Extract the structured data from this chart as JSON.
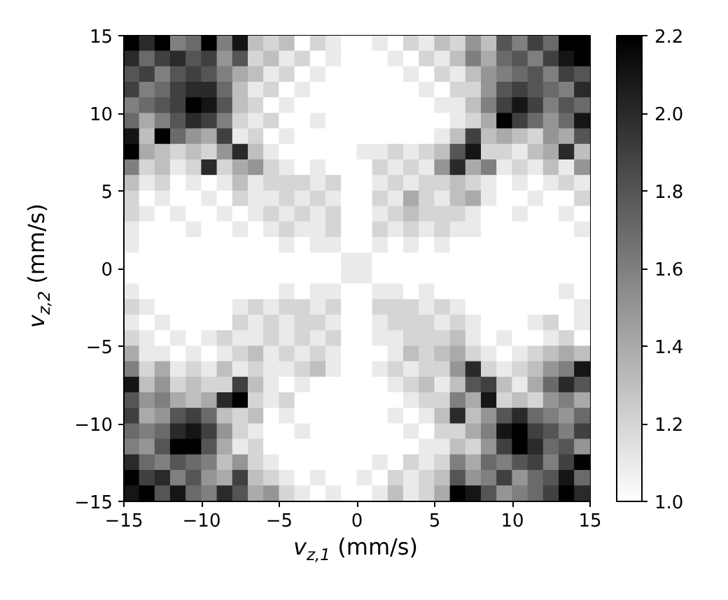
{
  "chart_data": {
    "type": "heatmap",
    "xlabel": "v$_{z,1}$ (mm/s)",
    "ylabel": "v$_{z,2}$ (mm/s)",
    "xlim": [
      -15,
      15
    ],
    "ylim": [
      -15,
      15
    ],
    "xticks": [
      -15,
      -10,
      -5,
      0,
      5,
      10,
      15
    ],
    "yticks": [
      -15,
      -10,
      -5,
      0,
      5,
      10,
      15
    ],
    "clim": [
      1.0,
      2.2
    ],
    "cticks": [
      {
        "value": 1.0,
        "label": "1.0"
      },
      1.2,
      1.4,
      1.6,
      1.8,
      {
        "value": 2.0,
        "label": "2.0"
      },
      2.2
    ],
    "cells": [
      [
        2.2,
        2.0,
        2.2,
        1.6,
        1.7,
        2.2,
        1.6,
        2.1,
        1.3,
        1.2,
        1.3,
        1.0,
        1.2,
        1.1,
        1.0,
        1.0,
        1.1,
        1.0,
        1.2,
        1.1,
        1.3,
        1.2,
        1.5,
        1.3,
        1.8,
        1.6,
        1.9,
        1.7,
        2.2,
        2.2
      ],
      [
        2.0,
        1.7,
        1.9,
        2.0,
        1.8,
        1.9,
        1.5,
        1.8,
        1.2,
        1.3,
        1.1,
        1.2,
        1.0,
        1.1,
        1.0,
        1.0,
        1.0,
        1.1,
        1.0,
        1.2,
        1.1,
        1.3,
        1.6,
        1.4,
        1.7,
        1.8,
        1.6,
        1.9,
        2.1,
        2.2
      ],
      [
        1.8,
        1.9,
        1.6,
        1.8,
        1.9,
        1.8,
        1.6,
        1.4,
        1.3,
        1.1,
        1.2,
        1.0,
        1.1,
        1.0,
        1.0,
        1.0,
        1.0,
        1.0,
        1.1,
        1.0,
        1.2,
        1.1,
        1.3,
        1.5,
        1.6,
        1.7,
        1.8,
        1.6,
        1.9,
        1.8
      ],
      [
        1.9,
        1.6,
        1.7,
        1.9,
        2.0,
        2.0,
        1.7,
        1.3,
        1.1,
        1.2,
        1.0,
        1.1,
        1.0,
        1.0,
        1.0,
        1.0,
        1.0,
        1.0,
        1.0,
        1.1,
        1.0,
        1.2,
        1.2,
        1.5,
        1.8,
        1.9,
        1.8,
        1.7,
        1.6,
        2.0
      ],
      [
        1.6,
        1.7,
        1.8,
        1.9,
        2.2,
        2.1,
        1.8,
        1.3,
        1.2,
        1.0,
        1.1,
        1.0,
        1.0,
        1.0,
        1.0,
        1.0,
        1.0,
        1.0,
        1.0,
        1.0,
        1.1,
        1.1,
        1.3,
        1.6,
        1.9,
        2.1,
        1.9,
        1.6,
        1.8,
        1.7
      ],
      [
        1.7,
        1.4,
        1.6,
        1.8,
        2.0,
        1.9,
        1.6,
        1.2,
        1.1,
        1.2,
        1.0,
        1.0,
        1.1,
        1.0,
        1.0,
        1.0,
        1.0,
        1.0,
        1.0,
        1.0,
        1.0,
        1.1,
        1.2,
        1.4,
        2.2,
        1.9,
        1.7,
        1.5,
        1.7,
        2.1
      ],
      [
        2.1,
        1.3,
        2.2,
        1.7,
        1.5,
        1.4,
        1.9,
        1.1,
        1.2,
        1.0,
        1.1,
        1.0,
        1.0,
        1.0,
        1.0,
        1.0,
        1.0,
        1.0,
        1.0,
        1.0,
        1.1,
        1.3,
        1.9,
        1.3,
        1.4,
        1.3,
        1.2,
        1.5,
        1.4,
        1.8
      ],
      [
        2.2,
        1.4,
        1.3,
        1.2,
        1.3,
        1.2,
        1.5,
        2.0,
        1.3,
        1.1,
        1.0,
        1.0,
        1.0,
        1.0,
        1.0,
        1.1,
        1.1,
        1.2,
        1.1,
        1.2,
        1.3,
        1.8,
        2.1,
        1.2,
        1.2,
        1.1,
        1.3,
        1.4,
        2.0,
        1.3
      ],
      [
        1.6,
        1.2,
        1.3,
        1.1,
        1.2,
        2.0,
        1.2,
        1.4,
        1.5,
        1.2,
        1.1,
        1.0,
        1.1,
        1.0,
        1.0,
        1.0,
        1.2,
        1.1,
        1.2,
        1.1,
        1.5,
        2.0,
        1.4,
        1.6,
        1.1,
        1.2,
        1.1,
        1.3,
        1.1,
        1.5
      ],
      [
        1.3,
        1.1,
        1.2,
        1.0,
        1.1,
        1.0,
        1.1,
        1.3,
        1.1,
        1.2,
        1.2,
        1.2,
        1.1,
        1.2,
        1.0,
        1.0,
        1.1,
        1.2,
        1.1,
        1.2,
        1.2,
        1.3,
        1.2,
        1.1,
        1.0,
        1.1,
        1.0,
        1.1,
        1.2,
        1.1
      ],
      [
        1.2,
        1.0,
        1.1,
        1.0,
        1.0,
        1.1,
        1.0,
        1.2,
        1.1,
        1.1,
        1.2,
        1.1,
        1.2,
        1.1,
        1.0,
        1.0,
        1.2,
        1.1,
        1.4,
        1.2,
        1.1,
        1.3,
        1.4,
        1.1,
        1.0,
        1.0,
        1.1,
        1.0,
        1.0,
        1.2
      ],
      [
        1.2,
        1.1,
        1.0,
        1.1,
        1.0,
        1.0,
        1.1,
        1.0,
        1.1,
        1.2,
        1.1,
        1.2,
        1.1,
        1.2,
        1.0,
        1.0,
        1.1,
        1.2,
        1.3,
        1.2,
        1.2,
        1.2,
        1.1,
        1.0,
        1.0,
        1.1,
        1.0,
        1.0,
        1.1,
        1.0
      ],
      [
        1.1,
        1.0,
        1.0,
        1.0,
        1.1,
        1.0,
        1.0,
        1.1,
        1.0,
        1.1,
        1.2,
        1.1,
        1.1,
        1.2,
        1.0,
        1.0,
        1.2,
        1.1,
        1.2,
        1.1,
        1.2,
        1.1,
        1.1,
        1.0,
        1.0,
        1.0,
        1.0,
        1.0,
        1.0,
        1.1
      ],
      [
        1.1,
        1.0,
        1.0,
        1.0,
        1.0,
        1.0,
        1.0,
        1.0,
        1.0,
        1.0,
        1.1,
        1.0,
        1.1,
        1.1,
        1.0,
        1.0,
        1.1,
        1.0,
        1.1,
        1.0,
        1.1,
        1.0,
        1.0,
        1.0,
        1.0,
        1.0,
        1.0,
        1.0,
        1.0,
        1.0
      ],
      [
        1.0,
        1.0,
        1.0,
        1.0,
        1.0,
        1.0,
        1.0,
        1.0,
        1.0,
        1.0,
        1.0,
        1.0,
        1.0,
        1.0,
        1.1,
        1.1,
        1.0,
        1.0,
        1.0,
        1.0,
        1.0,
        1.0,
        1.0,
        1.0,
        1.0,
        1.0,
        1.0,
        1.0,
        1.0,
        1.0
      ],
      [
        1.0,
        1.0,
        1.0,
        1.0,
        1.0,
        1.0,
        1.0,
        1.0,
        1.0,
        1.0,
        1.0,
        1.0,
        1.0,
        1.0,
        1.1,
        1.1,
        1.0,
        1.0,
        1.0,
        1.0,
        1.0,
        1.0,
        1.0,
        1.0,
        1.0,
        1.0,
        1.0,
        1.0,
        1.0,
        1.0
      ],
      [
        1.1,
        1.0,
        1.0,
        1.0,
        1.0,
        1.0,
        1.0,
        1.0,
        1.0,
        1.0,
        1.1,
        1.0,
        1.1,
        1.1,
        1.0,
        1.0,
        1.1,
        1.1,
        1.0,
        1.1,
        1.0,
        1.0,
        1.0,
        1.0,
        1.0,
        1.0,
        1.0,
        1.0,
        1.1,
        1.0
      ],
      [
        1.2,
        1.1,
        1.0,
        1.0,
        1.0,
        1.0,
        1.0,
        1.1,
        1.2,
        1.1,
        1.2,
        1.2,
        1.1,
        1.2,
        1.0,
        1.0,
        1.2,
        1.2,
        1.2,
        1.1,
        1.2,
        1.1,
        1.0,
        1.0,
        1.0,
        1.0,
        1.0,
        1.0,
        1.0,
        1.1
      ],
      [
        1.1,
        1.0,
        1.1,
        1.0,
        1.0,
        1.0,
        1.0,
        1.2,
        1.1,
        1.2,
        1.1,
        1.2,
        1.2,
        1.1,
        1.0,
        1.0,
        1.1,
        1.2,
        1.2,
        1.2,
        1.1,
        1.2,
        1.1,
        1.0,
        1.0,
        1.0,
        1.1,
        1.2,
        1.0,
        1.1
      ],
      [
        1.2,
        1.1,
        1.0,
        1.1,
        1.0,
        1.1,
        1.2,
        1.1,
        1.1,
        1.2,
        1.1,
        1.2,
        1.1,
        1.2,
        1.0,
        1.0,
        1.1,
        1.1,
        1.2,
        1.2,
        1.2,
        1.3,
        1.1,
        1.0,
        1.1,
        1.0,
        1.0,
        1.1,
        1.2,
        1.0
      ],
      [
        1.4,
        1.1,
        1.1,
        1.0,
        1.1,
        1.0,
        1.1,
        1.2,
        1.3,
        1.1,
        1.2,
        1.1,
        1.2,
        1.1,
        1.0,
        1.0,
        1.0,
        1.1,
        1.3,
        1.2,
        1.3,
        1.4,
        1.2,
        1.1,
        1.0,
        1.1,
        1.2,
        1.3,
        1.4,
        1.3
      ],
      [
        1.6,
        1.2,
        1.4,
        1.1,
        1.2,
        1.1,
        1.3,
        1.1,
        1.2,
        1.1,
        1.1,
        1.2,
        1.3,
        1.1,
        1.0,
        1.0,
        1.1,
        1.2,
        1.1,
        1.2,
        1.2,
        1.5,
        2.0,
        1.2,
        1.1,
        1.2,
        1.3,
        1.5,
        1.6,
        2.1
      ],
      [
        2.1,
        1.3,
        1.5,
        1.2,
        1.3,
        1.2,
        1.2,
        1.9,
        1.3,
        1.1,
        1.0,
        1.1,
        1.0,
        1.0,
        1.0,
        1.0,
        1.0,
        1.1,
        1.2,
        1.3,
        1.1,
        1.3,
        1.8,
        1.9,
        1.3,
        1.1,
        1.4,
        1.7,
        2.0,
        1.8
      ],
      [
        1.8,
        1.5,
        1.6,
        1.4,
        1.3,
        1.4,
        2.0,
        2.2,
        1.2,
        1.1,
        1.2,
        1.0,
        1.0,
        1.0,
        1.0,
        1.0,
        1.0,
        1.0,
        1.1,
        1.2,
        1.2,
        1.6,
        1.4,
        2.1,
        1.2,
        1.3,
        1.2,
        1.5,
        1.6,
        1.4
      ],
      [
        1.9,
        1.4,
        1.5,
        1.8,
        1.9,
        1.7,
        1.3,
        1.2,
        1.3,
        1.0,
        1.1,
        1.0,
        1.0,
        1.0,
        1.0,
        1.0,
        1.0,
        1.1,
        1.0,
        1.1,
        1.3,
        2.0,
        1.3,
        1.5,
        1.8,
        2.0,
        1.7,
        1.6,
        1.5,
        1.7
      ],
      [
        1.7,
        1.6,
        1.7,
        2.0,
        2.1,
        1.9,
        1.5,
        1.2,
        1.1,
        1.0,
        1.0,
        1.1,
        1.0,
        1.0,
        1.0,
        1.0,
        1.0,
        1.0,
        1.1,
        1.0,
        1.2,
        1.2,
        1.4,
        1.6,
        2.1,
        2.2,
        1.9,
        1.8,
        1.6,
        1.9
      ],
      [
        1.6,
        1.5,
        1.8,
        2.2,
        2.2,
        1.8,
        1.4,
        1.1,
        1.2,
        1.0,
        1.0,
        1.0,
        1.0,
        1.0,
        1.0,
        1.0,
        1.0,
        1.0,
        1.0,
        1.1,
        1.1,
        1.3,
        1.2,
        1.5,
        1.9,
        2.2,
        2.0,
        1.7,
        1.8,
        1.5
      ],
      [
        2.0,
        1.7,
        1.6,
        1.8,
        1.7,
        1.6,
        1.3,
        1.5,
        1.2,
        1.1,
        1.0,
        1.0,
        1.0,
        1.0,
        1.0,
        1.0,
        1.1,
        1.0,
        1.2,
        1.1,
        1.2,
        1.6,
        1.4,
        1.7,
        1.6,
        1.8,
        1.9,
        1.6,
        1.9,
        2.2
      ],
      [
        2.2,
        1.9,
        2.0,
        1.6,
        1.8,
        1.5,
        1.4,
        1.9,
        1.3,
        1.2,
        1.1,
        1.0,
        1.1,
        1.0,
        1.0,
        1.1,
        1.0,
        1.2,
        1.1,
        1.2,
        1.3,
        1.8,
        1.5,
        1.6,
        1.9,
        1.5,
        1.7,
        1.8,
        2.1,
        1.7
      ],
      [
        2.1,
        2.2,
        1.8,
        2.1,
        1.7,
        1.6,
        2.0,
        1.8,
        1.4,
        1.5,
        1.2,
        1.1,
        1.0,
        1.1,
        1.0,
        1.0,
        1.1,
        1.3,
        1.1,
        1.2,
        1.4,
        2.2,
        2.1,
        1.8,
        1.5,
        1.6,
        1.7,
        1.9,
        2.2,
        2.0
      ]
    ]
  }
}
